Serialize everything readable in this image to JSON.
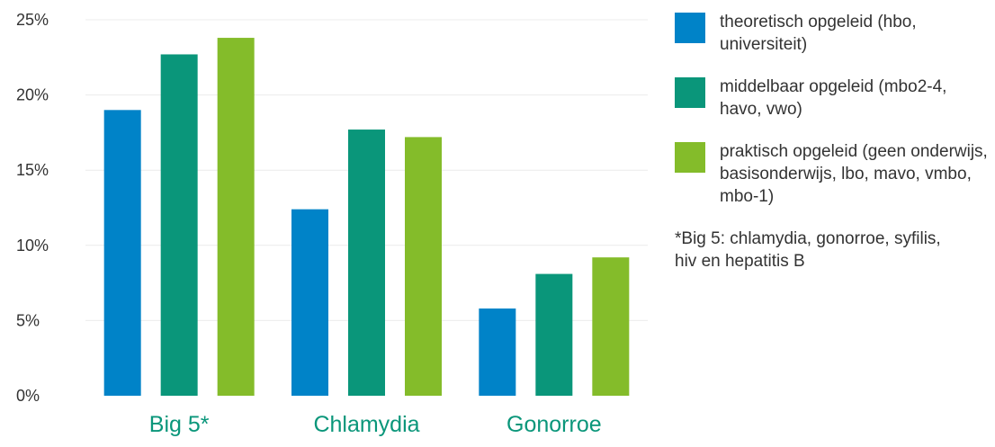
{
  "chart_data": {
    "type": "bar",
    "categories": [
      "Big 5*",
      "Chlamydia",
      "Gonorroe"
    ],
    "series": [
      {
        "name": "theoretisch opgeleid (hbo, universiteit)",
        "color": "#0083c8",
        "values": [
          19.0,
          12.4,
          5.8
        ]
      },
      {
        "name": "middelbaar opgeleid (mbo2-4, havo, vwo)",
        "color": "#0a967a",
        "values": [
          22.7,
          17.7,
          8.1
        ]
      },
      {
        "name": "praktisch opgeleid (geen onderwijs, basisonderwijs, lbo, mavo, vmbo, mbo-1)",
        "color": "#84bc2a",
        "values": [
          23.8,
          17.2,
          9.2
        ]
      }
    ],
    "ylim": [
      0,
      25
    ],
    "yticks": [
      0,
      5,
      10,
      15,
      20,
      25
    ],
    "ytick_labels": [
      "0%",
      "5%",
      "10%",
      "15%",
      "20%",
      "25%"
    ],
    "category_label_color": "#0a967a",
    "grid": true,
    "legend_position": "right",
    "footnote": "*Big 5: chlamydia, gonorroe, syfilis, hiv en hepatitis B"
  }
}
